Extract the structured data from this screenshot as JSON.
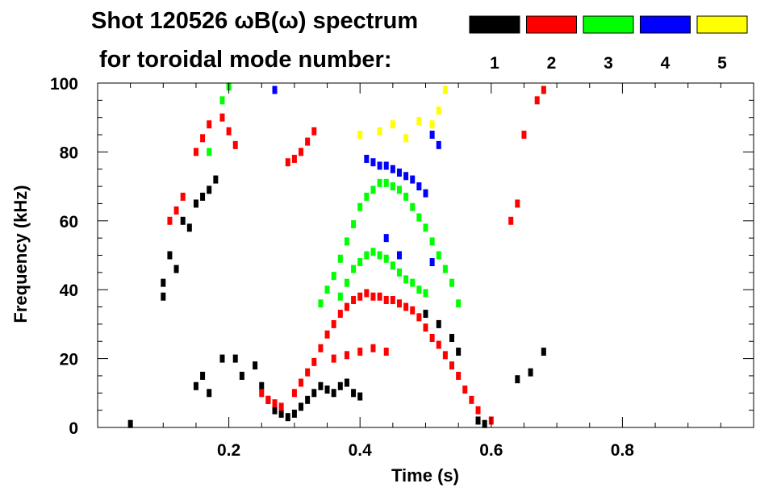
{
  "chart_data": {
    "type": "heatmap",
    "title": "Shot 120526 ωB(ω) spectrum",
    "subtitle": "for toroidal mode number:",
    "xlabel": "Time (s)",
    "ylabel": "Frequency (kHz)",
    "xlim": [
      0.0,
      1.0
    ],
    "ylim": [
      0,
      100
    ],
    "x_ticks": [
      "0.2",
      "0.4",
      "0.6",
      "0.8"
    ],
    "y_ticks": [
      "0",
      "20",
      "40",
      "60",
      "80",
      "100"
    ],
    "legend_placement": "top-right",
    "legend": [
      {
        "label": "1",
        "color": "#000000"
      },
      {
        "label": "2",
        "color": "#ff0000"
      },
      {
        "label": "3",
        "color": "#00ff00"
      },
      {
        "label": "4",
        "color": "#0000ff"
      },
      {
        "label": "5",
        "color": "#ffff00"
      }
    ],
    "series": [
      {
        "name": "1",
        "color": "#000000",
        "points": [
          [
            0.1,
            42
          ],
          [
            0.11,
            50
          ],
          [
            0.12,
            46
          ],
          [
            0.1,
            38
          ],
          [
            0.13,
            60
          ],
          [
            0.14,
            58
          ],
          [
            0.15,
            65
          ],
          [
            0.16,
            67
          ],
          [
            0.17,
            69
          ],
          [
            0.18,
            72
          ],
          [
            0.15,
            12
          ],
          [
            0.16,
            15
          ],
          [
            0.17,
            10
          ],
          [
            0.19,
            20
          ],
          [
            0.21,
            20
          ],
          [
            0.22,
            15
          ],
          [
            0.24,
            18
          ],
          [
            0.25,
            12
          ],
          [
            0.26,
            8
          ],
          [
            0.27,
            5
          ],
          [
            0.28,
            4
          ],
          [
            0.29,
            3
          ],
          [
            0.3,
            4
          ],
          [
            0.31,
            6
          ],
          [
            0.32,
            8
          ],
          [
            0.33,
            10
          ],
          [
            0.34,
            12
          ],
          [
            0.35,
            11
          ],
          [
            0.36,
            10
          ],
          [
            0.37,
            12
          ],
          [
            0.38,
            13
          ],
          [
            0.39,
            10
          ],
          [
            0.4,
            9
          ],
          [
            0.5,
            33
          ],
          [
            0.52,
            30
          ],
          [
            0.54,
            26
          ],
          [
            0.55,
            22
          ],
          [
            0.58,
            2
          ],
          [
            0.59,
            1
          ],
          [
            0.64,
            14
          ],
          [
            0.66,
            16
          ],
          [
            0.68,
            22
          ],
          [
            0.05,
            1
          ]
        ]
      },
      {
        "name": "2",
        "color": "#ff0000",
        "points": [
          [
            0.11,
            60
          ],
          [
            0.12,
            63
          ],
          [
            0.13,
            67
          ],
          [
            0.15,
            80
          ],
          [
            0.16,
            84
          ],
          [
            0.17,
            88
          ],
          [
            0.19,
            90
          ],
          [
            0.2,
            86
          ],
          [
            0.21,
            82
          ],
          [
            0.29,
            77
          ],
          [
            0.3,
            78
          ],
          [
            0.31,
            80
          ],
          [
            0.32,
            83
          ],
          [
            0.33,
            86
          ],
          [
            0.25,
            10
          ],
          [
            0.26,
            8
          ],
          [
            0.27,
            7
          ],
          [
            0.28,
            6
          ],
          [
            0.3,
            10
          ],
          [
            0.31,
            13
          ],
          [
            0.32,
            16
          ],
          [
            0.33,
            19
          ],
          [
            0.34,
            23
          ],
          [
            0.35,
            27
          ],
          [
            0.36,
            30
          ],
          [
            0.37,
            33
          ],
          [
            0.38,
            35
          ],
          [
            0.39,
            37
          ],
          [
            0.4,
            38
          ],
          [
            0.41,
            39
          ],
          [
            0.42,
            38
          ],
          [
            0.43,
            38
          ],
          [
            0.44,
            37
          ],
          [
            0.45,
            37
          ],
          [
            0.46,
            36
          ],
          [
            0.47,
            35
          ],
          [
            0.48,
            34
          ],
          [
            0.49,
            32
          ],
          [
            0.5,
            29
          ],
          [
            0.51,
            26
          ],
          [
            0.52,
            24
          ],
          [
            0.53,
            21
          ],
          [
            0.54,
            18
          ],
          [
            0.55,
            15
          ],
          [
            0.56,
            11
          ],
          [
            0.57,
            8
          ],
          [
            0.58,
            5
          ],
          [
            0.6,
            2
          ],
          [
            0.36,
            20
          ],
          [
            0.38,
            21
          ],
          [
            0.4,
            22
          ],
          [
            0.42,
            23
          ],
          [
            0.44,
            22
          ],
          [
            0.63,
            60
          ],
          [
            0.64,
            65
          ],
          [
            0.65,
            85
          ],
          [
            0.67,
            95
          ],
          [
            0.68,
            98
          ]
        ]
      },
      {
        "name": "3",
        "color": "#00ff00",
        "points": [
          [
            0.17,
            80
          ],
          [
            0.19,
            95
          ],
          [
            0.2,
            99
          ],
          [
            0.34,
            36
          ],
          [
            0.35,
            40
          ],
          [
            0.36,
            44
          ],
          [
            0.37,
            49
          ],
          [
            0.38,
            54
          ],
          [
            0.39,
            59
          ],
          [
            0.4,
            64
          ],
          [
            0.41,
            67
          ],
          [
            0.42,
            69
          ],
          [
            0.43,
            71
          ],
          [
            0.44,
            71
          ],
          [
            0.45,
            70
          ],
          [
            0.46,
            69
          ],
          [
            0.47,
            67
          ],
          [
            0.48,
            64
          ],
          [
            0.49,
            61
          ],
          [
            0.5,
            58
          ],
          [
            0.51,
            54
          ],
          [
            0.52,
            50
          ],
          [
            0.53,
            46
          ],
          [
            0.54,
            42
          ],
          [
            0.55,
            36
          ],
          [
            0.37,
            38
          ],
          [
            0.38,
            42
          ],
          [
            0.39,
            46
          ],
          [
            0.4,
            48
          ],
          [
            0.41,
            50
          ],
          [
            0.42,
            51
          ],
          [
            0.43,
            50
          ],
          [
            0.44,
            49
          ],
          [
            0.45,
            47
          ],
          [
            0.46,
            45
          ],
          [
            0.47,
            43
          ],
          [
            0.48,
            42
          ],
          [
            0.49,
            40
          ],
          [
            0.5,
            39
          ]
        ]
      },
      {
        "name": "4",
        "color": "#0000ff",
        "points": [
          [
            0.41,
            78
          ],
          [
            0.42,
            77
          ],
          [
            0.43,
            76
          ],
          [
            0.44,
            76
          ],
          [
            0.45,
            75
          ],
          [
            0.46,
            74
          ],
          [
            0.47,
            73
          ],
          [
            0.48,
            72
          ],
          [
            0.49,
            70
          ],
          [
            0.5,
            68
          ],
          [
            0.51,
            85
          ],
          [
            0.52,
            82
          ],
          [
            0.44,
            55
          ],
          [
            0.46,
            50
          ],
          [
            0.51,
            48
          ],
          [
            0.27,
            98
          ]
        ]
      },
      {
        "name": "5",
        "color": "#ffff00",
        "points": [
          [
            0.4,
            85
          ],
          [
            0.43,
            86
          ],
          [
            0.45,
            88
          ],
          [
            0.47,
            84
          ],
          [
            0.49,
            89
          ],
          [
            0.51,
            88
          ],
          [
            0.52,
            92
          ],
          [
            0.53,
            98
          ]
        ]
      }
    ]
  }
}
